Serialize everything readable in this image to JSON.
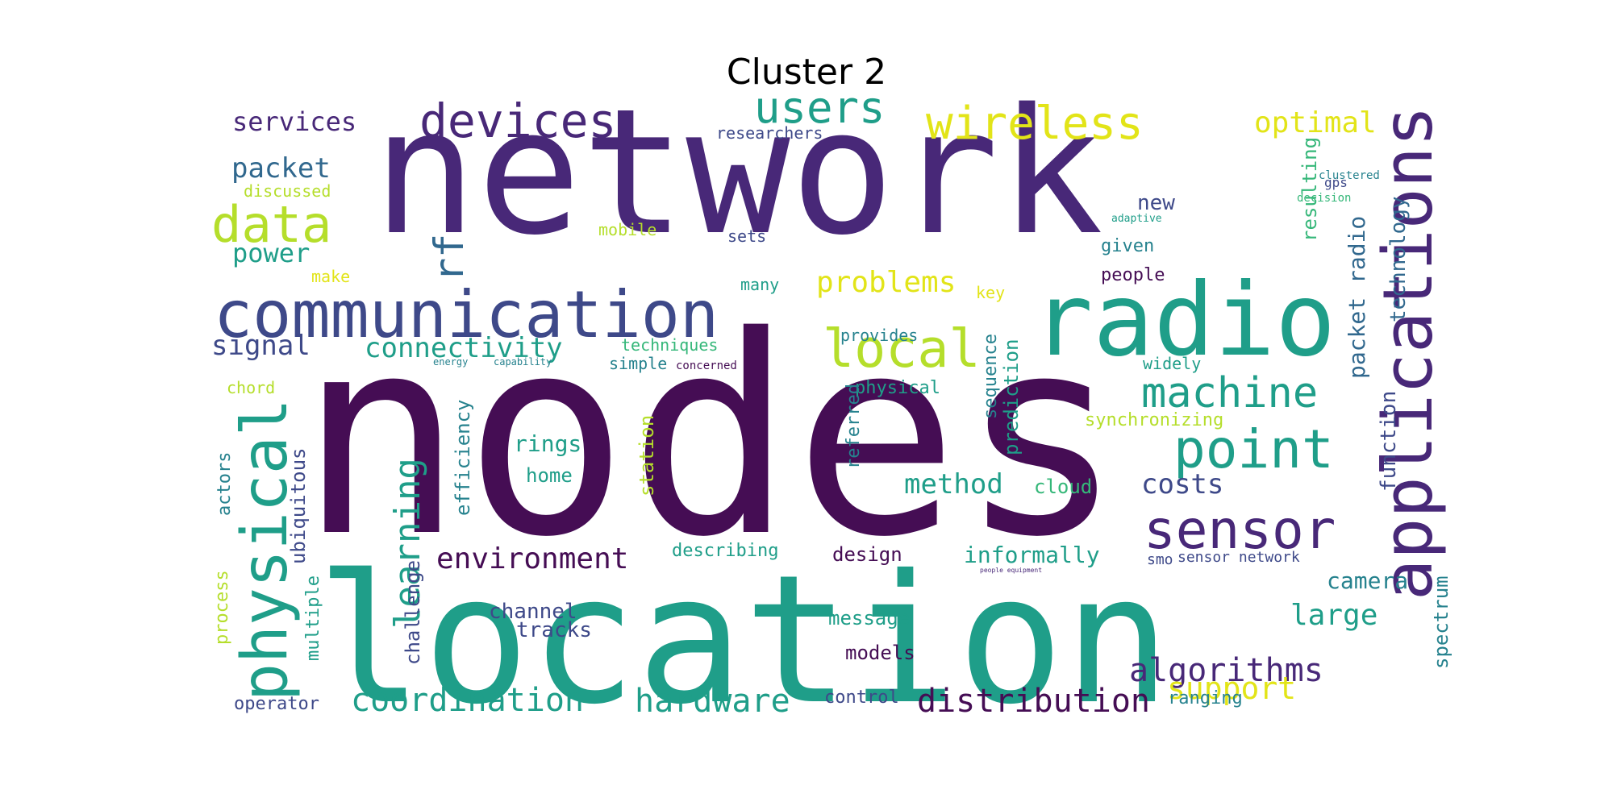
{
  "title": "Cluster 2",
  "palette": {
    "dark_purple": "#450d54",
    "purple": "#482878",
    "indigo": "#3e4989",
    "blue": "#31688e",
    "teal_blue": "#26828e",
    "teal": "#1f9e89",
    "green": "#35b779",
    "light_green": "#6ece58",
    "yellow_green": "#b5de2b",
    "yellow": "#e2e418"
  },
  "words": [
    {
      "text": "nodes",
      "weight": 1.0,
      "color": "dark_purple"
    },
    {
      "text": "network",
      "weight": 0.97,
      "color": "purple"
    },
    {
      "text": "location",
      "weight": 0.93,
      "color": "teal"
    },
    {
      "text": "radio",
      "weight": 0.55,
      "color": "teal"
    },
    {
      "text": "applications",
      "weight": 0.42,
      "color": "purple"
    },
    {
      "text": "communication",
      "weight": 0.38,
      "color": "indigo"
    },
    {
      "text": "physical",
      "weight": 0.36,
      "color": "teal"
    },
    {
      "text": "sensor",
      "weight": 0.3,
      "color": "purple"
    },
    {
      "text": "point",
      "weight": 0.3,
      "color": "teal"
    },
    {
      "text": "local",
      "weight": 0.29,
      "color": "yellow_green"
    },
    {
      "text": "data",
      "weight": 0.28,
      "color": "yellow_green"
    },
    {
      "text": "devices",
      "weight": 0.27,
      "color": "purple"
    },
    {
      "text": "users",
      "weight": 0.26,
      "color": "teal"
    },
    {
      "text": "wireless",
      "weight": 0.25,
      "color": "yellow"
    },
    {
      "text": "machine",
      "weight": 0.23,
      "color": "teal"
    },
    {
      "text": "rf",
      "weight": 0.2,
      "color": "blue"
    },
    {
      "text": "learning",
      "weight": 0.2,
      "color": "teal"
    },
    {
      "text": "algorithms",
      "weight": 0.18,
      "color": "purple"
    },
    {
      "text": "coordination",
      "weight": 0.18,
      "color": "teal"
    },
    {
      "text": "distribution",
      "weight": 0.18,
      "color": "dark_purple"
    },
    {
      "text": "hardware",
      "weight": 0.17,
      "color": "teal"
    },
    {
      "text": "support",
      "weight": 0.17,
      "color": "yellow"
    },
    {
      "text": "problems",
      "weight": 0.17,
      "color": "yellow"
    },
    {
      "text": "environment",
      "weight": 0.16,
      "color": "dark_purple"
    },
    {
      "text": "connectivity",
      "weight": 0.16,
      "color": "teal"
    },
    {
      "text": "optimal",
      "weight": 0.16,
      "color": "yellow"
    },
    {
      "text": "large",
      "weight": 0.16,
      "color": "teal"
    },
    {
      "text": "method",
      "weight": 0.15,
      "color": "teal"
    },
    {
      "text": "costs",
      "weight": 0.15,
      "color": "indigo"
    },
    {
      "text": "packet",
      "weight": 0.15,
      "color": "blue"
    },
    {
      "text": "services",
      "weight": 0.14,
      "color": "purple"
    },
    {
      "text": "power",
      "weight": 0.14,
      "color": "teal"
    },
    {
      "text": "signal",
      "weight": 0.14,
      "color": "indigo"
    },
    {
      "text": "informally",
      "weight": 0.13,
      "color": "teal"
    },
    {
      "text": "function",
      "weight": 0.13,
      "color": "indigo"
    },
    {
      "text": "technology",
      "weight": 0.13,
      "color": "blue"
    },
    {
      "text": "packet radio",
      "weight": 0.13,
      "color": "blue"
    },
    {
      "text": "ubiquitous",
      "weight": 0.12,
      "color": "indigo"
    },
    {
      "text": "physical",
      "weight": 0.12,
      "color": "teal"
    },
    {
      "text": "efficiency",
      "weight": 0.12,
      "color": "teal_blue"
    },
    {
      "text": "challenge",
      "weight": 0.12,
      "color": "indigo"
    },
    {
      "text": "prediction",
      "weight": 0.12,
      "color": "teal"
    },
    {
      "text": "spectrum",
      "weight": 0.12,
      "color": "teal_blue"
    },
    {
      "text": "resulting",
      "weight": 0.12,
      "color": "green"
    },
    {
      "text": "camera",
      "weight": 0.12,
      "color": "teal_blue"
    },
    {
      "text": "rings",
      "weight": 0.12,
      "color": "teal"
    },
    {
      "text": "tracks",
      "weight": 0.11,
      "color": "indigo"
    },
    {
      "text": "channel",
      "weight": 0.11,
      "color": "indigo"
    },
    {
      "text": "models",
      "weight": 0.11,
      "color": "dark_purple"
    },
    {
      "text": "message",
      "weight": 0.11,
      "color": "teal"
    },
    {
      "text": "cloud",
      "weight": 0.11,
      "color": "green"
    },
    {
      "text": "home",
      "weight": 0.11,
      "color": "teal"
    },
    {
      "text": "station",
      "weight": 0.11,
      "color": "yellow_green"
    },
    {
      "text": "new",
      "weight": 0.11,
      "color": "indigo"
    },
    {
      "text": "given",
      "weight": 0.1,
      "color": "teal_blue"
    },
    {
      "text": "people",
      "weight": 0.1,
      "color": "dark_purple"
    },
    {
      "text": "actors",
      "weight": 0.1,
      "color": "teal_blue"
    },
    {
      "text": "multiple",
      "weight": 0.1,
      "color": "teal"
    },
    {
      "text": "process",
      "weight": 0.1,
      "color": "yellow_green"
    },
    {
      "text": "describing",
      "weight": 0.1,
      "color": "teal"
    },
    {
      "text": "design",
      "weight": 0.1,
      "color": "dark_purple"
    },
    {
      "text": "operator",
      "weight": 0.1,
      "color": "indigo"
    },
    {
      "text": "control",
      "weight": 0.1,
      "color": "indigo"
    },
    {
      "text": "ranging",
      "weight": 0.1,
      "color": "teal_blue"
    },
    {
      "text": "referred",
      "weight": 0.1,
      "color": "teal_blue"
    },
    {
      "text": "sequence",
      "weight": 0.1,
      "color": "teal_blue"
    },
    {
      "text": "synchronizing",
      "weight": 0.1,
      "color": "yellow_green"
    },
    {
      "text": "widely",
      "weight": 0.09,
      "color": "teal"
    },
    {
      "text": "techniques",
      "weight": 0.09,
      "color": "green"
    },
    {
      "text": "provides",
      "weight": 0.09,
      "color": "teal_blue"
    },
    {
      "text": "key",
      "weight": 0.09,
      "color": "yellow"
    },
    {
      "text": "many",
      "weight": 0.09,
      "color": "teal"
    },
    {
      "text": "simple",
      "weight": 0.09,
      "color": "teal_blue"
    },
    {
      "text": "sets",
      "weight": 0.09,
      "color": "indigo"
    },
    {
      "text": "mobile",
      "weight": 0.09,
      "color": "yellow_green"
    },
    {
      "text": "researchers",
      "weight": 0.09,
      "color": "indigo"
    },
    {
      "text": "discussed",
      "weight": 0.09,
      "color": "yellow_green"
    },
    {
      "text": "make",
      "weight": 0.09,
      "color": "yellow"
    },
    {
      "text": "chord",
      "weight": 0.09,
      "color": "yellow_green"
    },
    {
      "text": "sensor network",
      "weight": 0.09,
      "color": "indigo"
    },
    {
      "text": "smo",
      "weight": 0.09,
      "color": "indigo"
    },
    {
      "text": "gps",
      "weight": 0.08,
      "color": "indigo"
    },
    {
      "text": "concerned",
      "weight": 0.07,
      "color": "dark_purple"
    },
    {
      "text": "energy",
      "weight": 0.07,
      "color": "teal_blue"
    },
    {
      "text": "capability",
      "weight": 0.06,
      "color": "teal_blue"
    },
    {
      "text": "clustered",
      "weight": 0.06,
      "color": "teal_blue"
    },
    {
      "text": "decision",
      "weight": 0.06,
      "color": "green"
    },
    {
      "text": "adaptive",
      "weight": 0.06,
      "color": "teal"
    },
    {
      "text": "people equipment",
      "weight": 0.04,
      "color": "purple"
    }
  ]
}
